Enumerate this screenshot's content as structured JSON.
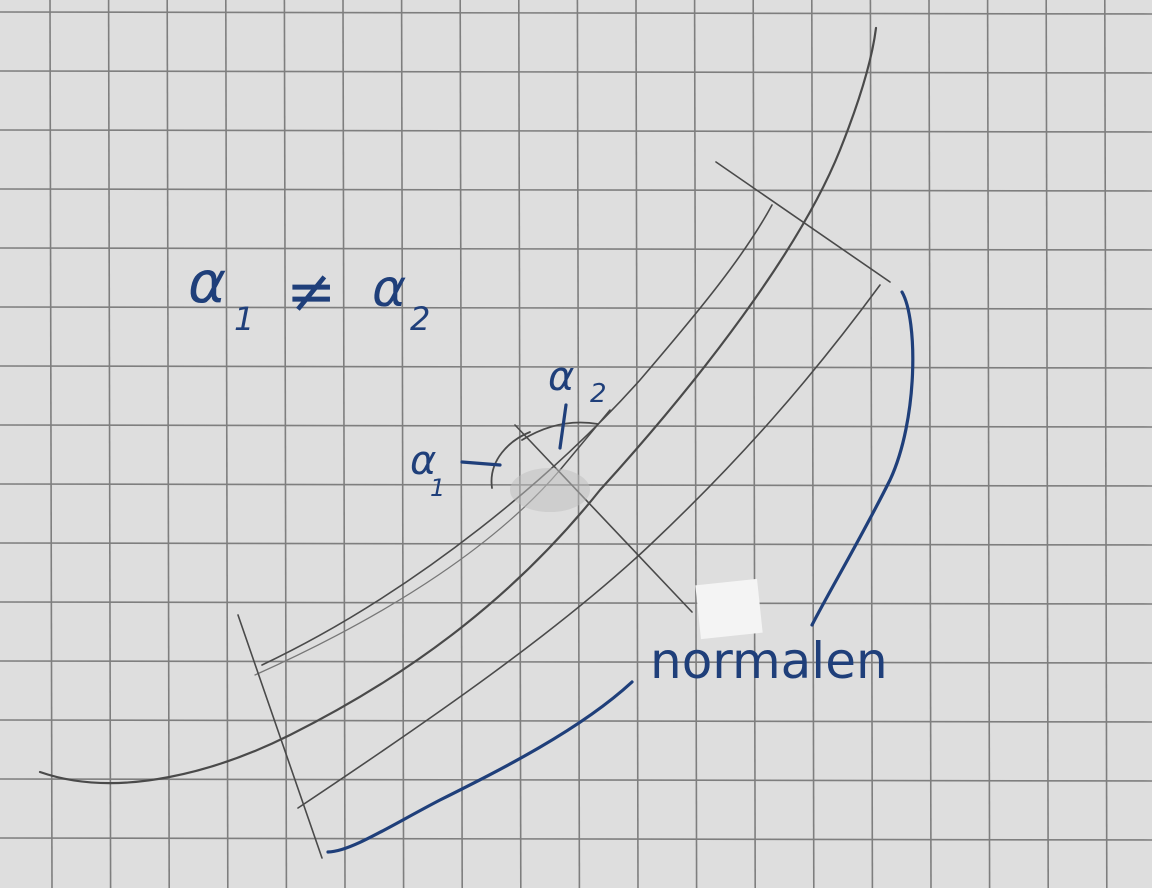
{
  "labels": {
    "inequality_alpha1": "α",
    "inequality_sub1": "1",
    "inequality_neq": "≠",
    "inequality_alpha2": "α",
    "inequality_sub2": "2",
    "angle1_alpha": "α",
    "angle1_sub": "1",
    "angle2_alpha": "α",
    "angle2_sub": "2",
    "normals_caption": "normalen"
  },
  "colors": {
    "paper": "#dedede",
    "grid": "#7e7e7e",
    "pencil": "#4a4a4a",
    "ink": "#1f3f7a"
  }
}
